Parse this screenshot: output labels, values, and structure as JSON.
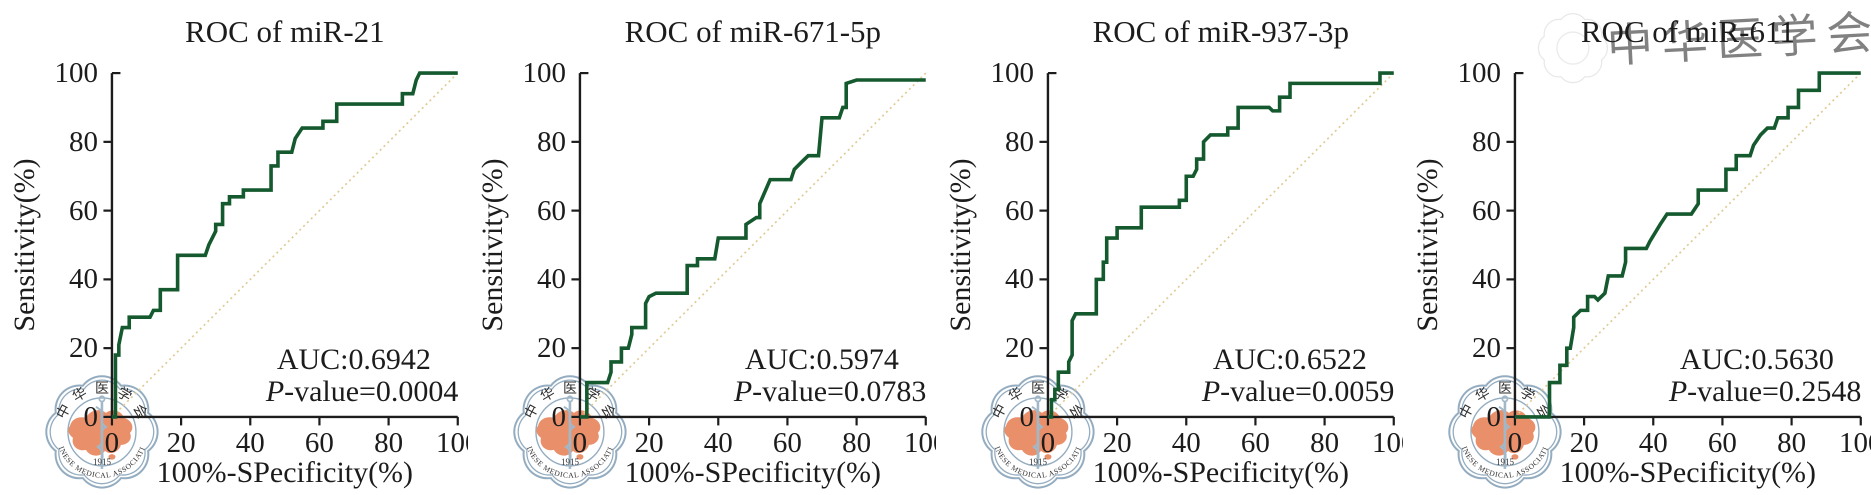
{
  "figure": {
    "background": "#ffffff",
    "curve_color": "#15592f",
    "diagonal_color": "#e0cb96",
    "axis_color": "#1c1c1c",
    "text_color": "#1c1c1c",
    "watermark": {
      "top_text": "中华医学会",
      "chars": [
        "中",
        "华",
        "医",
        "学",
        "会"
      ],
      "bottom_text": "CHINESE MEDICAL ASSOCIATION",
      "year": "1915",
      "ring_color": "#8ba6bb",
      "map_color": "#e8875f",
      "staff_color": "#9ab3c4"
    },
    "corner_watermark": {
      "panel_index": 3,
      "text": "中华医学会",
      "color": "#d6d6d6"
    }
  },
  "axes": {
    "x_label": "100%-SPecificity(%)",
    "y_label": "Sensitivity(%)",
    "ticks": [
      "0",
      "20",
      "40",
      "60",
      "80",
      "100"
    ],
    "x_range": [
      0,
      100
    ],
    "y_range": [
      0,
      100
    ],
    "grid": false
  },
  "chart_data": [
    {
      "type": "line",
      "title": "ROC of miR-21",
      "auc": 0.6942,
      "p_value": 0.0004,
      "auc_label": "AUC:0.6942",
      "p_prefix": "P",
      "p_rest": "-value=0.0004",
      "xlabel": "100%-SPecificity(%)",
      "ylabel": "Sensitivity(%)",
      "xlim": [
        0,
        100
      ],
      "ylim": [
        0,
        100
      ],
      "diagonal_reference": true,
      "points": [
        [
          0,
          0
        ],
        [
          1,
          0
        ],
        [
          1,
          18
        ],
        [
          2,
          18
        ],
        [
          2,
          21
        ],
        [
          3,
          26
        ],
        [
          5,
          26
        ],
        [
          5,
          29
        ],
        [
          11,
          29
        ],
        [
          12,
          31
        ],
        [
          14,
          31
        ],
        [
          14,
          37
        ],
        [
          19,
          37
        ],
        [
          19,
          47
        ],
        [
          27,
          47
        ],
        [
          28,
          50
        ],
        [
          30,
          54
        ],
        [
          30,
          56
        ],
        [
          32,
          56
        ],
        [
          32,
          62
        ],
        [
          34,
          62
        ],
        [
          34,
          64
        ],
        [
          38,
          64
        ],
        [
          38,
          66
        ],
        [
          46,
          66
        ],
        [
          46,
          73
        ],
        [
          48,
          73
        ],
        [
          48,
          77
        ],
        [
          52,
          77
        ],
        [
          53,
          81
        ],
        [
          55,
          84
        ],
        [
          61,
          84
        ],
        [
          61,
          86
        ],
        [
          65,
          86
        ],
        [
          65,
          91
        ],
        [
          84,
          91
        ],
        [
          84,
          94
        ],
        [
          87,
          94
        ],
        [
          88,
          98
        ],
        [
          89,
          100
        ],
        [
          100,
          100
        ]
      ]
    },
    {
      "type": "line",
      "title": "ROC of miR-671-5p",
      "auc": 0.5974,
      "p_value": 0.0783,
      "auc_label": "AUC:0.5974",
      "p_prefix": "P",
      "p_rest": "-value=0.0783",
      "xlabel": "100%-SPecificity(%)",
      "ylabel": "Sensitivity(%)",
      "xlim": [
        0,
        100
      ],
      "ylim": [
        0,
        100
      ],
      "diagonal_reference": true,
      "points": [
        [
          0,
          0
        ],
        [
          2,
          0
        ],
        [
          2,
          10
        ],
        [
          8,
          10
        ],
        [
          9,
          13
        ],
        [
          9,
          16
        ],
        [
          12,
          16
        ],
        [
          12,
          20
        ],
        [
          14,
          20
        ],
        [
          15,
          24
        ],
        [
          15,
          26
        ],
        [
          19,
          26
        ],
        [
          19,
          33
        ],
        [
          20,
          35
        ],
        [
          22,
          36
        ],
        [
          31,
          36
        ],
        [
          31,
          44
        ],
        [
          34,
          44
        ],
        [
          34,
          46
        ],
        [
          39,
          46
        ],
        [
          40,
          52
        ],
        [
          48,
          52
        ],
        [
          48,
          56
        ],
        [
          51,
          58
        ],
        [
          52,
          58
        ],
        [
          52,
          62
        ],
        [
          55,
          69
        ],
        [
          61,
          69
        ],
        [
          62,
          72
        ],
        [
          64,
          74
        ],
        [
          66,
          76
        ],
        [
          69,
          76
        ],
        [
          70,
          87
        ],
        [
          75,
          87
        ],
        [
          76,
          90
        ],
        [
          77,
          90
        ],
        [
          77,
          97
        ],
        [
          80,
          98
        ],
        [
          82,
          98
        ],
        [
          100,
          98
        ]
      ]
    },
    {
      "type": "line",
      "title": "ROC of miR-937-3p",
      "auc": 0.6522,
      "p_value": 0.0059,
      "auc_label": "AUC:0.6522",
      "p_prefix": "P",
      "p_rest": "-value=0.0059",
      "xlabel": "100%-SPecificity(%)",
      "ylabel": "Sensitivity(%)",
      "xlim": [
        0,
        100
      ],
      "ylim": [
        0,
        100
      ],
      "diagonal_reference": true,
      "points": [
        [
          0,
          0
        ],
        [
          1,
          0
        ],
        [
          1,
          5
        ],
        [
          2,
          5
        ],
        [
          2,
          8
        ],
        [
          3,
          8
        ],
        [
          3,
          13
        ],
        [
          6,
          13
        ],
        [
          6,
          16
        ],
        [
          7,
          18
        ],
        [
          7,
          28
        ],
        [
          8,
          30
        ],
        [
          14,
          30
        ],
        [
          14,
          40
        ],
        [
          16,
          40
        ],
        [
          16,
          45
        ],
        [
          17,
          45
        ],
        [
          17,
          52
        ],
        [
          20,
          52
        ],
        [
          20,
          55
        ],
        [
          27,
          55
        ],
        [
          27,
          61
        ],
        [
          38,
          61
        ],
        [
          38,
          63
        ],
        [
          40,
          63
        ],
        [
          40,
          70
        ],
        [
          42,
          70
        ],
        [
          43,
          72
        ],
        [
          43,
          75
        ],
        [
          45,
          75
        ],
        [
          45,
          80
        ],
        [
          47,
          82
        ],
        [
          52,
          82
        ],
        [
          52,
          84
        ],
        [
          55,
          84
        ],
        [
          55,
          90
        ],
        [
          64,
          90
        ],
        [
          65,
          89
        ],
        [
          67,
          89
        ],
        [
          67,
          93
        ],
        [
          70,
          93
        ],
        [
          70,
          97
        ],
        [
          77,
          97
        ],
        [
          96,
          97
        ],
        [
          96,
          100
        ],
        [
          100,
          100
        ]
      ]
    },
    {
      "type": "line",
      "title": "ROC of miR-611",
      "auc": 0.563,
      "p_value": 0.2548,
      "auc_label": "AUC:0.5630",
      "p_prefix": "P",
      "p_rest": "-value=0.2548",
      "xlabel": "100%-SPecificity(%)",
      "ylabel": "Sensitivity(%)",
      "xlim": [
        0,
        100
      ],
      "ylim": [
        0,
        100
      ],
      "diagonal_reference": true,
      "points": [
        [
          0,
          0
        ],
        [
          10,
          0
        ],
        [
          10,
          10
        ],
        [
          13,
          10
        ],
        [
          13,
          15
        ],
        [
          15,
          15
        ],
        [
          15,
          20
        ],
        [
          16,
          20
        ],
        [
          17,
          26
        ],
        [
          17,
          29
        ],
        [
          19,
          31
        ],
        [
          21,
          31
        ],
        [
          21,
          35
        ],
        [
          23,
          35
        ],
        [
          24,
          34
        ],
        [
          26,
          36
        ],
        [
          27,
          41
        ],
        [
          31,
          41
        ],
        [
          32,
          45
        ],
        [
          32,
          49
        ],
        [
          38,
          49
        ],
        [
          39,
          51
        ],
        [
          42,
          56
        ],
        [
          44,
          59
        ],
        [
          51,
          59
        ],
        [
          53,
          62
        ],
        [
          53,
          66
        ],
        [
          61,
          66
        ],
        [
          61,
          72
        ],
        [
          64,
          72
        ],
        [
          64,
          76
        ],
        [
          68,
          76
        ],
        [
          69,
          79
        ],
        [
          71,
          82
        ],
        [
          73,
          84
        ],
        [
          75,
          84
        ],
        [
          76,
          87
        ],
        [
          79,
          87
        ],
        [
          79,
          90
        ],
        [
          82,
          90
        ],
        [
          82,
          95
        ],
        [
          88,
          95
        ],
        [
          88,
          100
        ],
        [
          100,
          100
        ]
      ]
    }
  ]
}
